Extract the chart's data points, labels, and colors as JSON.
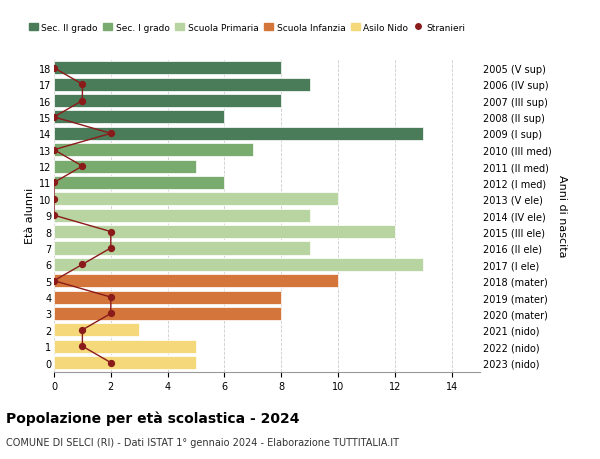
{
  "ages": [
    18,
    17,
    16,
    15,
    14,
    13,
    12,
    11,
    10,
    9,
    8,
    7,
    6,
    5,
    4,
    3,
    2,
    1,
    0
  ],
  "years": [
    "2005 (V sup)",
    "2006 (IV sup)",
    "2007 (III sup)",
    "2008 (II sup)",
    "2009 (I sup)",
    "2010 (III med)",
    "2011 (II med)",
    "2012 (I med)",
    "2013 (V ele)",
    "2014 (IV ele)",
    "2015 (III ele)",
    "2016 (II ele)",
    "2017 (I ele)",
    "2018 (mater)",
    "2019 (mater)",
    "2020 (mater)",
    "2021 (nido)",
    "2022 (nido)",
    "2023 (nido)"
  ],
  "bar_values": [
    8,
    9,
    8,
    6,
    13,
    7,
    5,
    6,
    10,
    9,
    12,
    9,
    13,
    10,
    8,
    8,
    3,
    5,
    5
  ],
  "bar_colors": [
    "#4a7c59",
    "#4a7c59",
    "#4a7c59",
    "#4a7c59",
    "#4a7c59",
    "#7aab6e",
    "#7aab6e",
    "#7aab6e",
    "#b8d4a0",
    "#b8d4a0",
    "#b8d4a0",
    "#b8d4a0",
    "#b8d4a0",
    "#d4763b",
    "#d4763b",
    "#d4763b",
    "#f5d87a",
    "#f5d87a",
    "#f5d87a"
  ],
  "stranieri_values": [
    0,
    1,
    1,
    0,
    2,
    0,
    1,
    0,
    0,
    0,
    2,
    2,
    1,
    0,
    2,
    2,
    1,
    1,
    2
  ],
  "xlim": [
    0,
    15
  ],
  "xticks": [
    0,
    2,
    4,
    6,
    8,
    10,
    12,
    14
  ],
  "legend_labels": [
    "Sec. II grado",
    "Sec. I grado",
    "Scuola Primaria",
    "Scuola Infanzia",
    "Asilo Nido",
    "Stranieri"
  ],
  "legend_colors": [
    "#4a7c59",
    "#7aab6e",
    "#b8d4a0",
    "#d4763b",
    "#f5d87a",
    "#8b1a1a"
  ],
  "title": "Popolazione per età scolastica - 2024",
  "subtitle": "COMUNE DI SELCI (RI) - Dati ISTAT 1° gennaio 2024 - Elaborazione TUTTITALIA.IT",
  "ylabel_left": "Età alunni",
  "ylabel_right": "Anni di nascita",
  "background_color": "#ffffff",
  "grid_color": "#cccccc",
  "bar_edge_color": "#ffffff",
  "bar_height": 0.8
}
